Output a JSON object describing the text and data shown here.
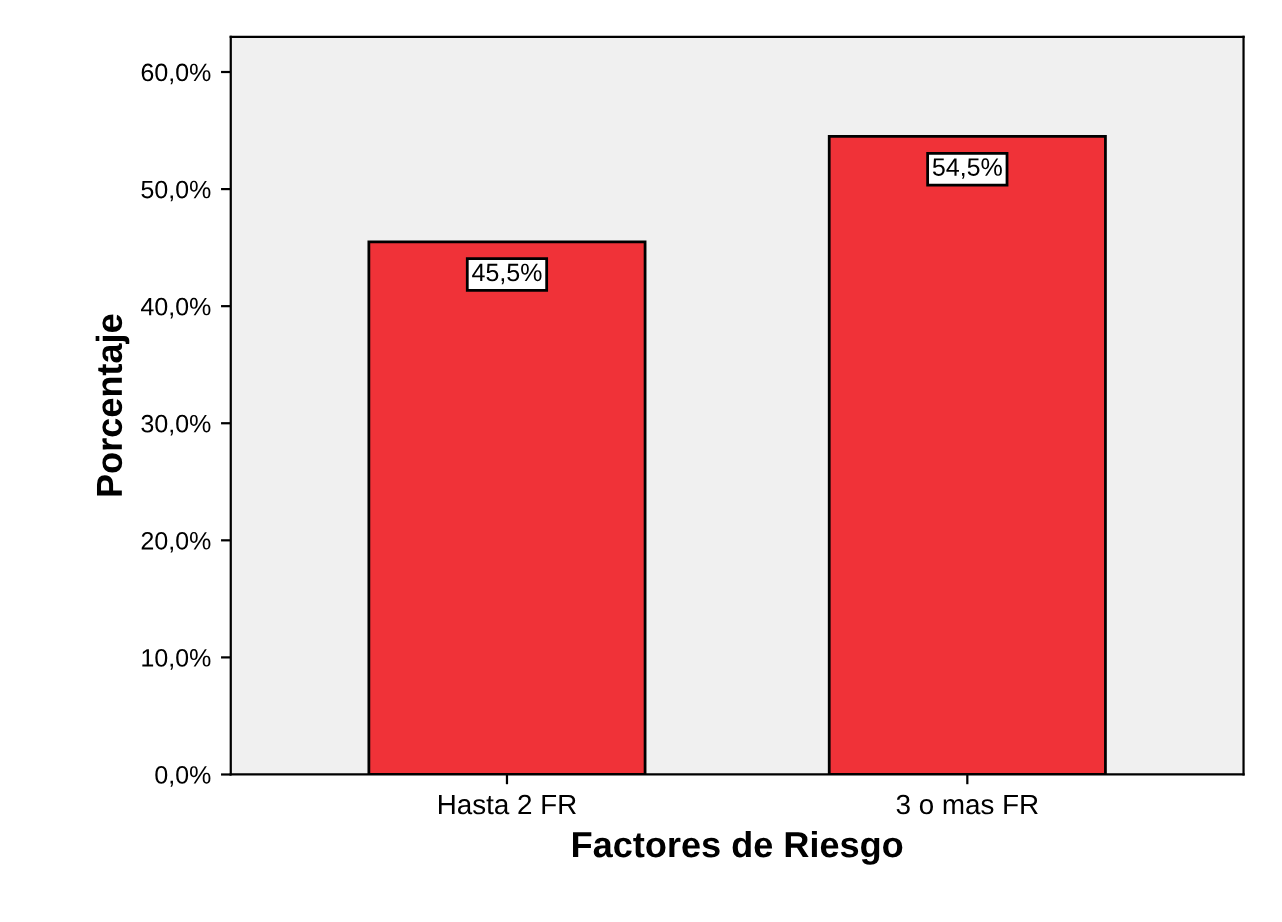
{
  "chart_data": {
    "type": "bar",
    "xlabel": "Factores de Riesgo",
    "ylabel": "Porcentaje",
    "categories": [
      "Hasta 2 FR",
      "3 o mas FR"
    ],
    "values": [
      45.5,
      54.5
    ],
    "value_labels": [
      "45,5%",
      "54,5%"
    ],
    "color": "#f03238",
    "ylim": [
      0,
      63
    ],
    "yticks": [
      {
        "value": 0,
        "label": "0,0%"
      },
      {
        "value": 10,
        "label": "10,0%"
      },
      {
        "value": 20,
        "label": "20,0%"
      },
      {
        "value": 30,
        "label": "30,0%"
      },
      {
        "value": 40,
        "label": "40,0%"
      },
      {
        "value": 50,
        "label": "50,0%"
      },
      {
        "value": 60,
        "label": "60,0%"
      }
    ],
    "grid": false,
    "legend": false
  }
}
